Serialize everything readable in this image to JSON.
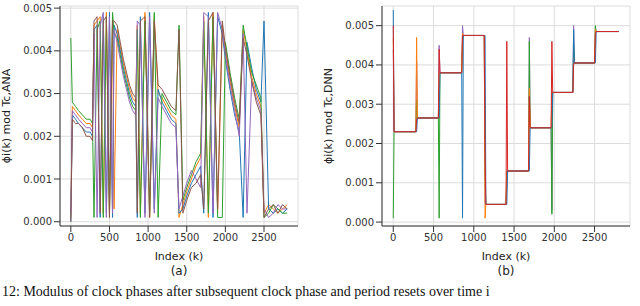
{
  "caption": "12: Modulus of clock phases after subsequent clock phase and period resets over time i",
  "chart_data": [
    {
      "type": "line",
      "title": "(a)",
      "xlabel": "Index (k)",
      "ylabel": "ϕi(k) mod Tc,ANA",
      "grid": true,
      "xlim": [
        -140,
        2940
      ],
      "ylim": [
        -0.0001,
        0.00505
      ],
      "xticks": [
        0,
        500,
        1000,
        1500,
        2000,
        2500
      ],
      "yticks": [
        {
          "value": 0,
          "label": "0.000"
        },
        {
          "value": 0.001,
          "label": "0.001"
        },
        {
          "value": 0.002,
          "label": "0.002"
        },
        {
          "value": 0.003,
          "label": "0.003"
        },
        {
          "value": 0.004,
          "label": "0.004"
        },
        {
          "value": 0.005,
          "label": "0.005"
        }
      ],
      "x": [
        0,
        20,
        60,
        100,
        150,
        200,
        250,
        280,
        300,
        340,
        380,
        420,
        460,
        500,
        540,
        560,
        600,
        640,
        680,
        720,
        760,
        800,
        840,
        860,
        900,
        960,
        1020,
        1080,
        1130,
        1180,
        1240,
        1300,
        1360,
        1400,
        1450,
        1500,
        1560,
        1620,
        1680,
        1720,
        1780,
        1840,
        1900,
        1960,
        2000,
        2060,
        2120,
        2180,
        2230,
        2280,
        2340,
        2400,
        2460,
        2500,
        2560,
        2620,
        2680,
        2740,
        2800
      ],
      "series": [
        {
          "color": "#ff7f0e",
          "values": [
            0.0001,
            0.0027,
            0.0026,
            0.0025,
            0.0024,
            0.0023,
            0.0023,
            0.0022,
            0.0046,
            0.0047,
            0.0048,
            0.0002,
            0.0049,
            0.0001,
            0.0048,
            0.0003,
            0.0045,
            0.0041,
            0.0037,
            0.0034,
            0.0031,
            0.0029,
            0.0028,
            0.0046,
            0.0002,
            0.0049,
            0.0001,
            0.0048,
            0.003,
            0.0029,
            0.0027,
            0.0025,
            0.0024,
            0.0001,
            0.0004,
            0.0007,
            0.001,
            0.0013,
            0.0015,
            0.0048,
            0.0001,
            0.0049,
            0.0002,
            0.0046,
            0.004,
            0.0033,
            0.0027,
            0.0022,
            0.0045,
            0.004,
            0.0034,
            0.003,
            0.0027,
            0.0002,
            0.0004,
            0.0003,
            0.0002,
            0.0003,
            0.0004
          ]
        },
        {
          "color": "#1f77b4",
          "values": [
            0,
            0.0025,
            0.0024,
            0.0023,
            0.0022,
            0.0021,
            0.0021,
            0.002,
            0.0045,
            0.0046,
            0.0001,
            0.0048,
            0.0002,
            0.0049,
            0.0001,
            0.0046,
            0.0044,
            0.004,
            0.0036,
            0.0033,
            0.003,
            0.0028,
            0.0027,
            0.0001,
            0.0048,
            0.0002,
            0.0049,
            0.0003,
            0.0031,
            0.0028,
            0.0026,
            0.0024,
            0.0023,
            0.0002,
            0.0003,
            0.0006,
            0.0009,
            0.0011,
            0.0013,
            0.0002,
            0.0049,
            0.0001,
            0.0048,
            0.0044,
            0.0038,
            0.0031,
            0.0025,
            0.0021,
            0.0001,
            0.0042,
            0.0036,
            0.0031,
            0.0028,
            0.0047,
            0.0003,
            0.0002,
            0.0003,
            0.0002,
            0.0003
          ]
        },
        {
          "color": "#2ca02c",
          "values": [
            0.0043,
            0.0028,
            0.0027,
            0.0026,
            0.0025,
            0.0024,
            0.0024,
            0.0023,
            0.0001,
            0.0045,
            0.0047,
            0.0001,
            0.0048,
            0.0002,
            0.0049,
            0.0044,
            0.0043,
            0.0039,
            0.0035,
            0.0032,
            0.0029,
            0.0027,
            0.0026,
            0.0045,
            0.0001,
            0.0047,
            0.0002,
            0.0049,
            0.0001,
            0.003,
            0.0028,
            0.0026,
            0.0025,
            0.0046,
            0.0005,
            0.0008,
            0.0011,
            0.0014,
            0.0016,
            0.0047,
            0.0002,
            0.0048,
            0.0001,
            0.0001,
            0.0042,
            0.0035,
            0.0029,
            0.0024,
            0.0046,
            0.0041,
            0.0035,
            0.0032,
            0.0029,
            0.0001,
            0.0002,
            0.0004,
            0.0003,
            0.0002,
            0.0002
          ]
        },
        {
          "color": "#9467bd",
          "values": [
            0.0002,
            0.0026,
            0.0025,
            0.0024,
            0.0023,
            0.0022,
            0.0022,
            0.0021,
            0.0044,
            0.0001,
            0.0046,
            0.0049,
            0.0001,
            0.0048,
            0.0002,
            0.0045,
            0.0042,
            0.0038,
            0.0034,
            0.0031,
            0.0028,
            0.0026,
            0.0025,
            0.0047,
            0.0046,
            0.0001,
            0.0048,
            0.0002,
            0.0029,
            0.0027,
            0.0025,
            0.0023,
            0.0022,
            0.0003,
            0.0006,
            0.0009,
            0.0012,
            0.001,
            0.0008,
            0.0049,
            0.0048,
            0.0002,
            0.0049,
            0.0045,
            0.0039,
            0.0032,
            0.0026,
            0.002,
            0.0044,
            0.0002,
            0.0033,
            0.0029,
            0.0026,
            0.0003,
            0.0001,
            0.0002,
            0.0004,
            0.0003,
            0.0003
          ]
        },
        {
          "color": "#8c564b",
          "values": [
            0,
            0.0024,
            0.0023,
            0.0023,
            0.0022,
            0.002,
            0.002,
            0.0019,
            0.0047,
            0.0048,
            0.0002,
            0.0047,
            0.0048,
            0.0001,
            0.0047,
            0.0047,
            0.0046,
            0.0042,
            0.0038,
            0.0035,
            0.0032,
            0.003,
            0.0029,
            0.0002,
            0.0047,
            0.0048,
            0.0001,
            0.0047,
            0.0032,
            0.0031,
            0.0029,
            0.0027,
            0.0026,
            0.0045,
            0.0002,
            0.0005,
            0.0008,
            0.0009,
            0.0011,
            0.0003,
            0.0047,
            0.0049,
            0.0003,
            0.0047,
            0.0041,
            0.0034,
            0.0028,
            0.0023,
            0.0043,
            0.0039,
            0.0033,
            0.0028,
            0.0025,
            0.0001,
            0.0003,
            0.0004,
            0.0002,
            0.0004,
            0.0003
          ]
        }
      ]
    },
    {
      "type": "line",
      "title": "(b)",
      "xlabel": "Index (k)",
      "ylabel": "ϕi(k) mod Tc,DNN",
      "grid": true,
      "xlim": [
        -140,
        2940
      ],
      "ylim": [
        -0.0001,
        0.0055
      ],
      "xticks": [
        0,
        500,
        1000,
        1500,
        2000,
        2500
      ],
      "yticks": [
        {
          "value": 0,
          "label": "0.000"
        },
        {
          "value": 0.001,
          "label": "0.001"
        },
        {
          "value": 0.002,
          "label": "0.002"
        },
        {
          "value": 0.003,
          "label": "0.003"
        },
        {
          "value": 0.004,
          "label": "0.004"
        },
        {
          "value": 0.005,
          "label": "0.005"
        }
      ],
      "x": [
        0,
        10,
        280,
        290,
        300,
        560,
        570,
        580,
        850,
        860,
        870,
        1130,
        1140,
        1150,
        1400,
        1410,
        1420,
        1680,
        1690,
        1700,
        1960,
        1970,
        1980,
        2230,
        2240,
        2250,
        2500,
        2510,
        2520,
        2800
      ],
      "series": [
        {
          "color": "#9467bd",
          "values": [
            0.0044,
            0.0023,
            0.0023,
            0.0041,
            0.00265,
            0.00265,
            0.0045,
            0.0038,
            0.0038,
            0.005,
            0.00475,
            0.00475,
            0.0005,
            0.00045,
            0.00045,
            0.0009,
            0.0013,
            0.0013,
            0.0047,
            0.0024,
            0.0024,
            0.0003,
            0.0033,
            0.0033,
            0.005,
            0.00405,
            0.00405,
            0.0048,
            0.00485,
            0.00485
          ]
        },
        {
          "color": "#2ca02c",
          "values": [
            0.0001,
            0.0023,
            0.0023,
            0.0031,
            0.00265,
            0.00265,
            0.0001,
            0.0038,
            0.0038,
            0.0046,
            0.00475,
            0.00475,
            0.0011,
            0.00045,
            0.00045,
            0.0013,
            0.0013,
            0.0013,
            0.0046,
            0.0024,
            0.0024,
            0.0002,
            0.0033,
            0.0033,
            0.0045,
            0.00405,
            0.00405,
            0.005,
            0.00485,
            0.00485
          ]
        },
        {
          "color": "#ff7f0e",
          "values": [
            0.0047,
            0.0023,
            0.0023,
            0.0047,
            0.00265,
            0.00265,
            0.0038,
            0.0038,
            0.0038,
            0.0048,
            0.00475,
            0.00475,
            0.0001,
            0.00045,
            0.00045,
            0.0013,
            0.0013,
            0.0013,
            0.0034,
            0.0024,
            0.0024,
            0.0033,
            0.0033,
            0.0033,
            0.0042,
            0.00405,
            0.00405,
            0.0049,
            0.00485,
            0.00485
          ]
        },
        {
          "color": "#1f77b4",
          "values": [
            0.0054,
            0.0023,
            0.0023,
            0.0023,
            0.00265,
            0.00265,
            0.00265,
            0.0038,
            0.0038,
            0.0001,
            0.00475,
            0.00475,
            0.00475,
            0.00045,
            0.00045,
            0.00045,
            0.0013,
            0.0013,
            0.0013,
            0.0024,
            0.0024,
            0.0024,
            0.0033,
            0.0033,
            0.0049,
            0.00405,
            0.00405,
            0.00405,
            0.00485,
            0.00485
          ]
        },
        {
          "color": "#d62728",
          "values": [
            0.005,
            0.0023,
            0.0023,
            0.0026,
            0.00265,
            0.00265,
            0.0044,
            0.0038,
            0.0038,
            0.00475,
            0.00475,
            0.00475,
            0.0017,
            0.00045,
            0.00045,
            0.0046,
            0.0013,
            0.0013,
            0.0032,
            0.0024,
            0.0024,
            0.0046,
            0.0033,
            0.0033,
            0.004,
            0.00405,
            0.00405,
            0.0048,
            0.00485,
            0.00485
          ]
        }
      ]
    }
  ]
}
